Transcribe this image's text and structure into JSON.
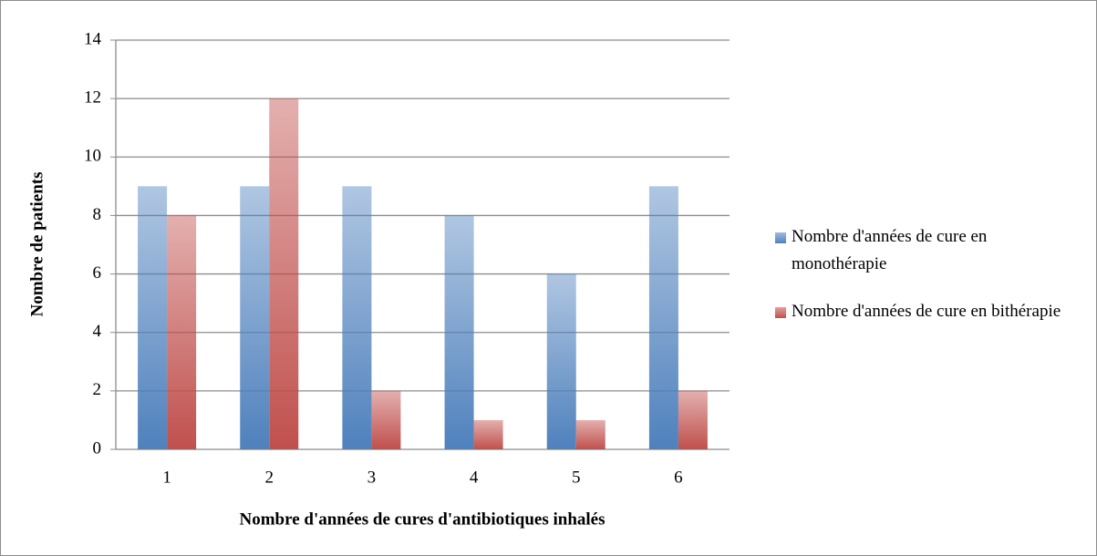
{
  "chart_data": {
    "type": "bar",
    "x_label": "Nombre d'années de cures d'antibiotiques inhalés",
    "y_label": "Nombre de patients",
    "categories": [
      "1",
      "2",
      "3",
      "4",
      "5",
      "6"
    ],
    "series": [
      {
        "name": "Nombre d'années de cure en monothérapie",
        "color": "#4f81bd",
        "values": [
          9,
          9,
          9,
          8,
          6,
          9
        ]
      },
      {
        "name": "Nombre d'années de cure en bithérapie",
        "color": "#c0504d",
        "values": [
          8,
          12,
          2,
          1,
          1,
          2
        ]
      }
    ],
    "ylim": [
      0,
      14
    ],
    "yticks": [
      0,
      2,
      4,
      6,
      8,
      10,
      12,
      14
    ],
    "grid": true,
    "legend": "right"
  }
}
